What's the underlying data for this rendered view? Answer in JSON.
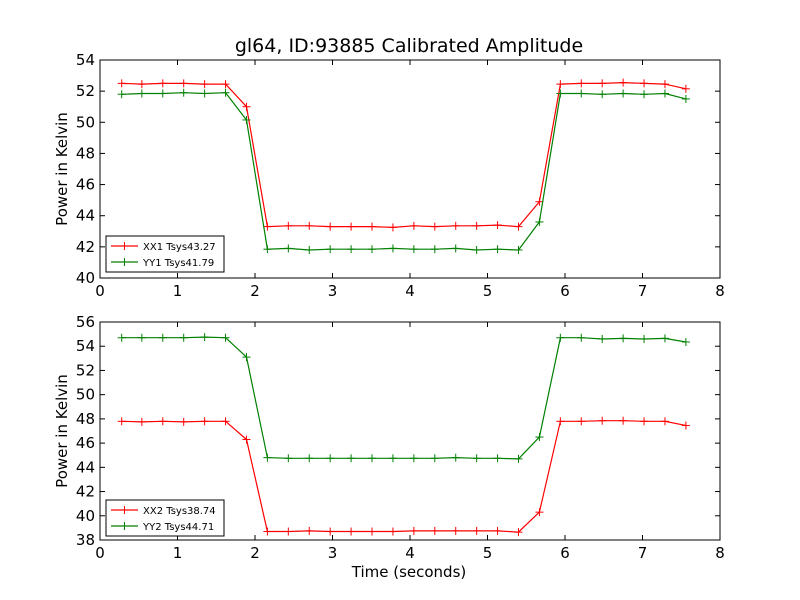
{
  "title": "gl64, ID:93885 Calibrated Amplitude",
  "xlabel": "Time (seconds)",
  "colors": {
    "red": "#ff0000",
    "green": "#008000"
  },
  "chart_data": [
    {
      "type": "line",
      "ylabel": "Power in Kelvin",
      "xlim": [
        0,
        8
      ],
      "ylim": [
        40,
        54
      ],
      "xticks": [
        "0",
        "1",
        "2",
        "3",
        "4",
        "5",
        "6",
        "7",
        "8"
      ],
      "yticks": [
        "40",
        "42",
        "44",
        "46",
        "48",
        "50",
        "52",
        "54"
      ],
      "legend_position": "lower-left",
      "x": [
        0.28,
        0.54,
        0.81,
        1.08,
        1.35,
        1.62,
        1.89,
        2.16,
        2.43,
        2.7,
        2.97,
        3.24,
        3.51,
        3.78,
        4.05,
        4.32,
        4.59,
        4.86,
        5.13,
        5.4,
        5.67,
        5.94,
        6.21,
        6.48,
        6.75,
        7.02,
        7.29,
        7.56
      ],
      "series": [
        {
          "name": "XX1 Tsys43.27",
          "color": "#ff0000",
          "values": [
            52.5,
            52.45,
            52.5,
            52.5,
            52.45,
            52.45,
            51.0,
            43.3,
            43.35,
            43.35,
            43.3,
            43.3,
            43.3,
            43.25,
            43.35,
            43.3,
            43.35,
            43.35,
            43.4,
            43.3,
            44.9,
            52.45,
            52.5,
            52.5,
            52.55,
            52.5,
            52.45,
            52.15
          ]
        },
        {
          "name": "YY1 Tsys41.79",
          "color": "#008000",
          "values": [
            51.8,
            51.85,
            51.85,
            51.9,
            51.85,
            51.9,
            50.15,
            41.85,
            41.9,
            41.8,
            41.85,
            41.85,
            41.85,
            41.9,
            41.85,
            41.85,
            41.9,
            41.8,
            41.85,
            41.8,
            43.6,
            51.85,
            51.85,
            51.8,
            51.85,
            51.8,
            51.85,
            51.5
          ]
        }
      ]
    },
    {
      "type": "line",
      "ylabel": "Power in Kelvin",
      "xlabel": "Time (seconds)",
      "xlim": [
        0,
        8
      ],
      "ylim": [
        38,
        56
      ],
      "xticks": [
        "0",
        "1",
        "2",
        "3",
        "4",
        "5",
        "6",
        "7",
        "8"
      ],
      "yticks": [
        "38",
        "40",
        "42",
        "44",
        "46",
        "48",
        "50",
        "52",
        "54",
        "56"
      ],
      "legend_position": "lower-left",
      "x": [
        0.28,
        0.54,
        0.81,
        1.08,
        1.35,
        1.62,
        1.89,
        2.16,
        2.43,
        2.7,
        2.97,
        3.24,
        3.51,
        3.78,
        4.05,
        4.32,
        4.59,
        4.86,
        5.13,
        5.4,
        5.67,
        5.94,
        6.21,
        6.48,
        6.75,
        7.02,
        7.29,
        7.56
      ],
      "series": [
        {
          "name": "XX2 Tsys38.74",
          "color": "#ff0000",
          "values": [
            47.8,
            47.75,
            47.8,
            47.75,
            47.8,
            47.8,
            46.3,
            38.7,
            38.7,
            38.75,
            38.7,
            38.7,
            38.7,
            38.7,
            38.75,
            38.75,
            38.75,
            38.75,
            38.75,
            38.65,
            40.3,
            47.8,
            47.8,
            47.85,
            47.85,
            47.8,
            47.8,
            47.45
          ]
        },
        {
          "name": "YY2 Tsys44.71",
          "color": "#008000",
          "values": [
            54.7,
            54.7,
            54.7,
            54.7,
            54.75,
            54.7,
            53.1,
            44.8,
            44.75,
            44.75,
            44.75,
            44.75,
            44.75,
            44.75,
            44.75,
            44.75,
            44.8,
            44.75,
            44.75,
            44.7,
            46.5,
            54.7,
            54.7,
            54.6,
            54.65,
            54.6,
            54.65,
            54.35
          ]
        }
      ]
    }
  ]
}
